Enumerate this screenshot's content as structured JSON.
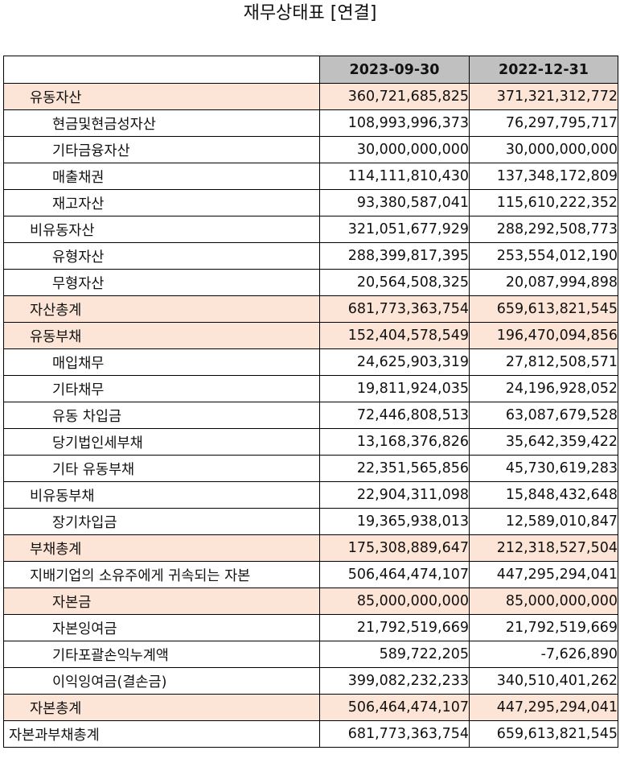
{
  "title": "재무상태표 [연결]",
  "columns": [
    "2023-09-30",
    "2022-12-31"
  ],
  "rows": [
    {
      "label": "유동자산",
      "level": 1,
      "highlight": true,
      "values": [
        "360,721,685,825",
        "371,321,312,772"
      ]
    },
    {
      "label": "현금및현금성자산",
      "level": 2,
      "highlight": false,
      "values": [
        "108,993,996,373",
        "76,297,795,717"
      ]
    },
    {
      "label": "기타금융자산",
      "level": 2,
      "highlight": false,
      "values": [
        "30,000,000,000",
        "30,000,000,000"
      ]
    },
    {
      "label": "매출채권",
      "level": 2,
      "highlight": false,
      "values": [
        "114,111,810,430",
        "137,348,172,809"
      ]
    },
    {
      "label": "재고자산",
      "level": 2,
      "highlight": false,
      "values": [
        "93,380,587,041",
        "115,610,222,352"
      ]
    },
    {
      "label": "비유동자산",
      "level": 1,
      "highlight": false,
      "values": [
        "321,051,677,929",
        "288,292,508,773"
      ]
    },
    {
      "label": "유형자산",
      "level": 2,
      "highlight": false,
      "values": [
        "288,399,817,395",
        "253,554,012,190"
      ]
    },
    {
      "label": "무형자산",
      "level": 2,
      "highlight": false,
      "values": [
        "20,564,508,325",
        "20,087,994,898"
      ]
    },
    {
      "label": "자산총계",
      "level": 1,
      "highlight": true,
      "values": [
        "681,773,363,754",
        "659,613,821,545"
      ]
    },
    {
      "label": "유동부채",
      "level": 1,
      "highlight": true,
      "values": [
        "152,404,578,549",
        "196,470,094,856"
      ]
    },
    {
      "label": "매입채무",
      "level": 2,
      "highlight": false,
      "values": [
        "24,625,903,319",
        "27,812,508,571"
      ]
    },
    {
      "label": "기타채무",
      "level": 2,
      "highlight": false,
      "values": [
        "19,811,924,035",
        "24,196,928,052"
      ]
    },
    {
      "label": "유동 차입금",
      "level": 2,
      "highlight": false,
      "values": [
        "72,446,808,513",
        "63,087,679,528"
      ]
    },
    {
      "label": "당기법인세부채",
      "level": 2,
      "highlight": false,
      "values": [
        "13,168,376,826",
        "35,642,359,422"
      ]
    },
    {
      "label": "기타 유동부채",
      "level": 2,
      "highlight": false,
      "values": [
        "22,351,565,856",
        "45,730,619,283"
      ]
    },
    {
      "label": "비유동부채",
      "level": 1,
      "highlight": false,
      "values": [
        "22,904,311,098",
        "15,848,432,648"
      ]
    },
    {
      "label": "장기차입금",
      "level": 2,
      "highlight": false,
      "values": [
        "19,365,938,013",
        "12,589,010,847"
      ]
    },
    {
      "label": "부채총계",
      "level": 1,
      "highlight": true,
      "values": [
        "175,308,889,647",
        "212,318,527,504"
      ]
    },
    {
      "label": "지배기업의 소유주에게 귀속되는 자본",
      "level": 1,
      "highlight": false,
      "values": [
        "506,464,474,107",
        "447,295,294,041"
      ]
    },
    {
      "label": "자본금",
      "level": 2,
      "highlight": true,
      "values": [
        "85,000,000,000",
        "85,000,000,000"
      ]
    },
    {
      "label": "자본잉여금",
      "level": 2,
      "highlight": false,
      "values": [
        "21,792,519,669",
        "21,792,519,669"
      ]
    },
    {
      "label": "기타포괄손익누계액",
      "level": 2,
      "highlight": false,
      "values": [
        "589,722,205",
        "-7,626,890"
      ]
    },
    {
      "label": "이익잉여금(결손금)",
      "level": 2,
      "highlight": false,
      "values": [
        "399,082,232,233",
        "340,510,401,262"
      ]
    },
    {
      "label": "자본총계",
      "level": 1,
      "highlight": true,
      "values": [
        "506,464,474,107",
        "447,295,294,041"
      ]
    },
    {
      "label": "자본과부채총계",
      "level": 0,
      "highlight": false,
      "values": [
        "681,773,363,754",
        "659,613,821,545"
      ]
    }
  ]
}
